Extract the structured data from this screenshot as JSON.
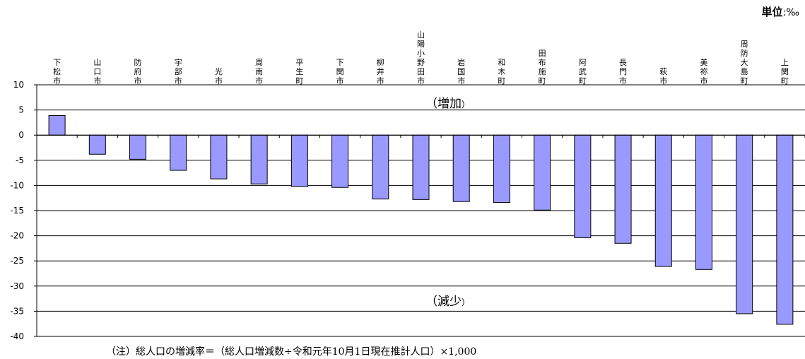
{
  "unit": {
    "label": "単位",
    "separator": ":",
    "symbol": "‰"
  },
  "chart_data": {
    "type": "bar",
    "categories": [
      "下松市",
      "山口市",
      "防府市",
      "宇部市",
      "光市",
      "周南市",
      "平生町",
      "下関市",
      "柳井市",
      "山陽小野田市",
      "岩国市",
      "和木町",
      "田布施町",
      "阿武町",
      "長門市",
      "萩市",
      "美祢市",
      "周防大島町",
      "上関町"
    ],
    "values": [
      3.9,
      -3.8,
      -4.8,
      -7.0,
      -8.7,
      -9.7,
      -10.2,
      -10.4,
      -12.7,
      -12.8,
      -13.2,
      -13.4,
      -14.9,
      -20.4,
      -21.5,
      -26.1,
      -26.7,
      -35.5,
      -37.6
    ],
    "ylim": [
      -40,
      10
    ],
    "yticks": [
      10,
      5,
      0,
      -5,
      -10,
      -15,
      -20,
      -25,
      -30,
      -35,
      -40
    ],
    "grid": true,
    "bar_color": "#9999ff",
    "annotations": {
      "increase": {
        "main": "（増加",
        "tail": "）"
      },
      "decrease": {
        "main": "（減少",
        "tail": "）"
      }
    }
  },
  "footnote": "（注）総人口の増減率＝（総人口増減数÷令和元年10月1日現在推計人口）×1,000"
}
